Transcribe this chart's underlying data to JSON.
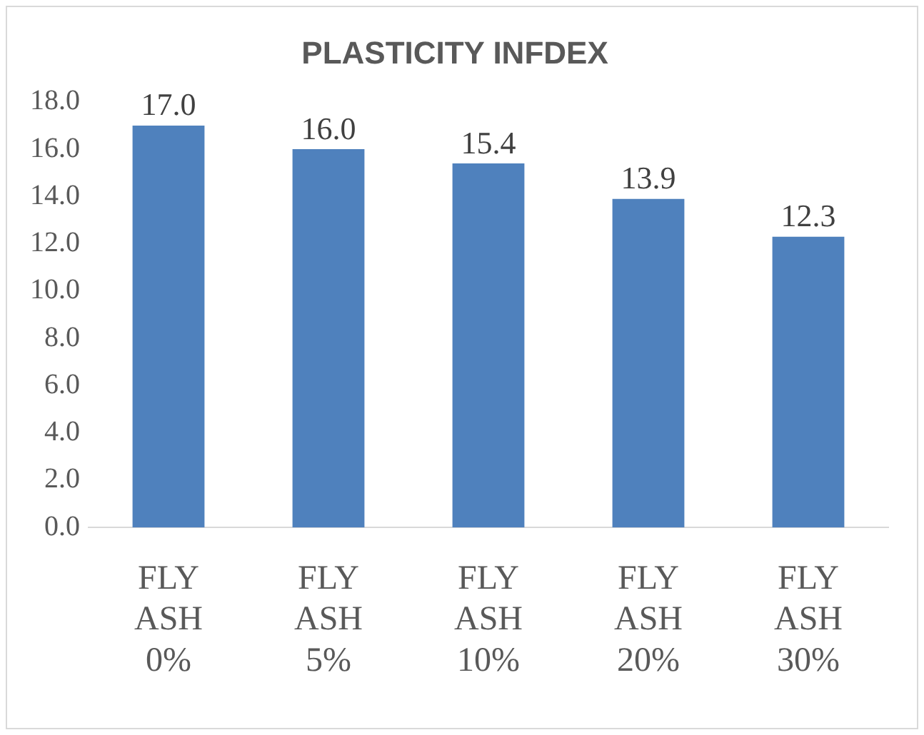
{
  "chart_data": {
    "type": "bar",
    "title": "PLASTICITY INFDEX",
    "categories": [
      "FLY ASH 0%",
      "FLY ASH 5%",
      "FLY ASH 10%",
      "FLY ASH 20%",
      "FLY ASH 30%"
    ],
    "values": [
      17.0,
      16.0,
      15.4,
      13.9,
      12.3
    ],
    "color": "#4f81bd",
    "ylim": [
      0,
      18
    ],
    "yticks": [
      {
        "value": 0,
        "label": "0.0"
      },
      {
        "value": 2,
        "label": "2.0"
      },
      {
        "value": 4,
        "label": "4.0"
      },
      {
        "value": 6,
        "label": "6.0"
      },
      {
        "value": 8,
        "label": "8.0"
      },
      {
        "value": 10,
        "label": "10.0"
      },
      {
        "value": 12,
        "label": "12.0"
      },
      {
        "value": 14,
        "label": "14.0"
      },
      {
        "value": 16,
        "label": "16.0"
      },
      {
        "value": 18,
        "label": "18.0"
      }
    ],
    "value_labels": [
      "17.0",
      "16.0",
      "15.4",
      "13.9",
      "12.3"
    ],
    "grid": false,
    "legend": false
  }
}
